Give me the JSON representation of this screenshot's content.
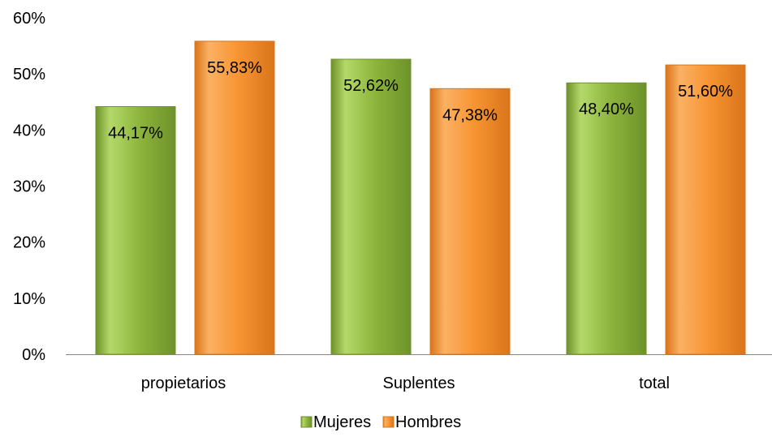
{
  "chart_data": {
    "type": "bar",
    "categories": [
      "propietarios",
      "Suplentes",
      "total"
    ],
    "series": [
      {
        "name": "Mujeres",
        "values": [
          44.17,
          52.62,
          48.4
        ],
        "labels": [
          "44,17%",
          "52,62%",
          "48,40%"
        ],
        "color": "#8DB43C",
        "color_light": "#B4D96A",
        "color_dark": "#6E922A"
      },
      {
        "name": "Hombres",
        "values": [
          55.83,
          47.38,
          51.6
        ],
        "labels": [
          "55,83%",
          "47,38%",
          "51,60%"
        ],
        "color": "#F79432",
        "color_light": "#FBB163",
        "color_dark": "#D9751A"
      }
    ],
    "ylim": [
      0,
      60
    ],
    "yticks": [
      0,
      10,
      20,
      30,
      40,
      50,
      60
    ],
    "ytick_labels": [
      "0%",
      "10%",
      "20%",
      "30%",
      "40%",
      "50%",
      "60%"
    ],
    "grid": false,
    "legend_position": "bottom",
    "data_labels_position": "inside-top"
  }
}
